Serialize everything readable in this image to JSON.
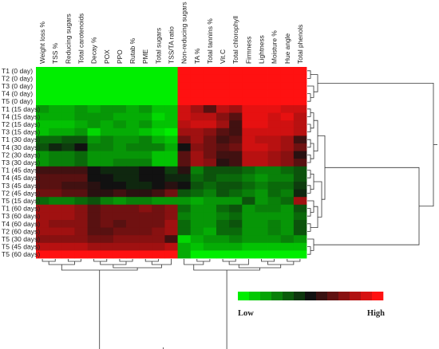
{
  "chart_data": {
    "type": "heatmap",
    "columns": [
      "Weight loss %",
      "TSS %",
      "Reducing sugars",
      "Total carotenoids",
      "Decay %",
      "POX",
      "PPO",
      "Rutab %",
      "PME",
      "Total sugars",
      "TSS/TA ratio",
      "Non-reducing sugars",
      "TA %",
      "Total tannins %",
      "Vit.C",
      "Total chlorophyll",
      "Firmness",
      "Lightness",
      "Moisture %",
      "Hue angle",
      "Total phenols"
    ],
    "rows": [
      "T1 (0 day)",
      "T2 (0 day)",
      "T3 (0 day)",
      "T4 (0 day)",
      "T5 (0 day)",
      "T1 (15 days)",
      "T4 (15 days)",
      "T2 (15 days)",
      "T3 (15 days)",
      "T1 (30 days)",
      "T4 (30 days)",
      "T2 (30 days)",
      "T3 (30 days)",
      "T1 (45 days)",
      "T4 (45 days)",
      "T3 (45 days)",
      "T2 (45 days)",
      "T5 (15 days)",
      "T1 (60 days)",
      "T3 (60 days)",
      "T4 (60 days)",
      "T2 (60 days)",
      "T5 (30 days)",
      "T5 (45 days)",
      "T5 (60 days)"
    ],
    "values": [
      [
        -1.0,
        -1.0,
        -1.0,
        -1.0,
        -1.0,
        -1.0,
        -1.0,
        -1.0,
        -1.0,
        -1.0,
        -1.0,
        1.0,
        1.0,
        1.0,
        1.0,
        1.0,
        1.0,
        1.0,
        1.0,
        1.0,
        1.0
      ],
      [
        -1.0,
        -1.0,
        -1.0,
        -1.0,
        -1.0,
        -1.0,
        -1.0,
        -1.0,
        -1.0,
        -1.0,
        -1.0,
        1.0,
        1.0,
        1.0,
        1.0,
        1.0,
        1.0,
        1.0,
        1.0,
        1.0,
        1.0
      ],
      [
        -1.0,
        -1.0,
        -1.0,
        -1.0,
        -1.0,
        -1.0,
        -1.0,
        -1.0,
        -1.0,
        -1.0,
        -1.0,
        1.0,
        1.0,
        1.0,
        1.0,
        1.0,
        1.0,
        1.0,
        1.0,
        1.0,
        1.0
      ],
      [
        -1.0,
        -1.0,
        -1.0,
        -1.0,
        -1.0,
        -1.0,
        -1.0,
        -1.0,
        -1.0,
        -1.0,
        -1.0,
        1.0,
        1.0,
        1.0,
        1.0,
        1.0,
        1.0,
        1.0,
        1.0,
        1.0,
        1.0
      ],
      [
        -1.0,
        -1.0,
        -1.0,
        -1.0,
        -1.0,
        -1.0,
        -1.0,
        -1.0,
        -1.0,
        -1.0,
        -1.0,
        1.0,
        1.0,
        1.0,
        1.0,
        1.0,
        1.0,
        1.0,
        1.0,
        1.0,
        1.0
      ],
      [
        -0.6,
        -0.7,
        -0.7,
        -0.6,
        -0.7,
        -0.6,
        -0.6,
        -0.7,
        -0.6,
        -0.8,
        -0.8,
        0.8,
        0.6,
        0.3,
        0.7,
        0.6,
        0.9,
        0.9,
        0.9,
        0.8,
        0.8
      ],
      [
        -0.7,
        -0.7,
        -0.7,
        -0.6,
        -0.6,
        -0.6,
        -0.7,
        -0.7,
        -0.7,
        -0.9,
        -0.8,
        0.8,
        0.7,
        0.7,
        0.5,
        0.3,
        0.9,
        0.9,
        0.8,
        0.9,
        0.7
      ],
      [
        -0.8,
        -0.8,
        -0.8,
        -0.7,
        -0.6,
        -0.7,
        -0.6,
        -0.7,
        -0.6,
        -0.8,
        -0.8,
        0.7,
        0.8,
        0.8,
        0.6,
        0.2,
        0.9,
        0.9,
        0.8,
        0.8,
        0.7
      ],
      [
        -0.8,
        -0.7,
        -0.7,
        -0.6,
        -0.9,
        -0.7,
        -0.7,
        -0.7,
        -0.8,
        -0.9,
        -1.0,
        0.6,
        0.6,
        0.5,
        0.3,
        0.2,
        0.8,
        0.8,
        0.8,
        0.8,
        0.7
      ],
      [
        -0.4,
        -0.4,
        -0.3,
        -0.3,
        -0.6,
        -0.5,
        -0.6,
        -0.6,
        -0.5,
        -0.7,
        -0.8,
        0.4,
        0.6,
        0.4,
        0.2,
        0.3,
        0.8,
        0.7,
        0.7,
        0.6,
        0.2
      ],
      [
        -0.3,
        -0.1,
        -0.2,
        0.0,
        -0.5,
        -0.5,
        -0.6,
        -0.5,
        -0.5,
        -0.5,
        -0.7,
        0.0,
        0.5,
        0.4,
        0.3,
        0.4,
        0.8,
        0.8,
        0.7,
        0.6,
        0.4
      ],
      [
        -0.6,
        -0.5,
        -0.5,
        -0.4,
        -0.6,
        -0.6,
        -0.6,
        -0.6,
        -0.6,
        -0.8,
        -0.8,
        0.3,
        0.6,
        0.4,
        0.2,
        0.2,
        0.7,
        0.7,
        0.6,
        0.5,
        0.1
      ],
      [
        -0.6,
        -0.5,
        -0.5,
        -0.4,
        -0.6,
        -0.6,
        -0.5,
        -0.5,
        -0.5,
        -0.8,
        -0.8,
        0.3,
        0.6,
        0.5,
        0.1,
        0.2,
        0.7,
        0.7,
        0.6,
        0.5,
        0.3
      ],
      [
        0.2,
        0.2,
        0.2,
        0.2,
        0.0,
        -0.1,
        -0.1,
        -0.1,
        0.0,
        0.0,
        -0.2,
        0.1,
        -0.5,
        -0.3,
        -0.3,
        -0.3,
        -0.4,
        -0.5,
        -0.5,
        -0.4,
        -0.3
      ],
      [
        0.3,
        0.3,
        0.3,
        0.3,
        0.0,
        0.0,
        -0.1,
        -0.1,
        0.0,
        0.0,
        -0.1,
        -0.1,
        -0.4,
        -0.3,
        -0.4,
        -0.4,
        -0.5,
        -0.6,
        -0.5,
        -0.5,
        -0.3
      ],
      [
        0.3,
        0.3,
        0.2,
        0.2,
        0.1,
        0.0,
        0.0,
        -0.1,
        -0.1,
        0.0,
        0.1,
        0.0,
        -0.3,
        -0.4,
        -0.3,
        -0.3,
        -0.4,
        -0.5,
        -0.4,
        -0.4,
        -0.2
      ],
      [
        0.4,
        0.4,
        0.3,
        0.3,
        0.1,
        0.1,
        0.2,
        0.1,
        0.1,
        0.2,
        0.4,
        -0.3,
        -0.4,
        -0.5,
        -0.3,
        -0.4,
        -0.5,
        -0.6,
        -0.4,
        -0.5,
        -0.1
      ],
      [
        -0.4,
        -0.5,
        -0.5,
        -0.4,
        -0.3,
        -0.5,
        -0.6,
        -0.5,
        -0.5,
        -0.6,
        -0.6,
        -0.6,
        -0.7,
        -0.6,
        -0.6,
        -0.6,
        -0.3,
        -0.6,
        -0.5,
        -0.4,
        0.6
      ],
      [
        0.6,
        0.6,
        0.6,
        0.5,
        0.3,
        0.4,
        0.4,
        0.4,
        0.5,
        0.4,
        0.5,
        -0.4,
        -0.6,
        -0.6,
        -0.4,
        -0.3,
        -0.6,
        -0.5,
        -0.5,
        -0.6,
        -0.3
      ],
      [
        0.6,
        0.6,
        0.6,
        0.5,
        0.3,
        0.4,
        0.4,
        0.4,
        0.4,
        0.4,
        0.5,
        -0.5,
        -0.6,
        -0.6,
        -0.5,
        -0.4,
        -0.6,
        -0.6,
        -0.6,
        -0.6,
        -0.4
      ],
      [
        0.6,
        0.5,
        0.5,
        0.5,
        0.3,
        0.4,
        0.3,
        0.4,
        0.4,
        0.4,
        0.6,
        -0.4,
        -0.6,
        -0.6,
        -0.4,
        -0.3,
        -0.6,
        -0.6,
        -0.5,
        -0.6,
        -0.3
      ],
      [
        0.6,
        0.6,
        0.6,
        0.5,
        0.3,
        0.3,
        0.4,
        0.4,
        0.4,
        0.5,
        0.6,
        -0.4,
        -0.6,
        -0.7,
        -0.4,
        -0.4,
        -0.6,
        -0.6,
        -0.5,
        -0.6,
        -0.3
      ],
      [
        0.5,
        0.5,
        0.5,
        0.5,
        0.4,
        0.4,
        0.5,
        0.5,
        0.5,
        0.5,
        0.2,
        -0.9,
        -0.7,
        -0.6,
        -0.6,
        -0.5,
        -0.6,
        -0.6,
        -0.6,
        -0.5,
        -0.6
      ],
      [
        0.7,
        0.7,
        0.7,
        0.7,
        0.6,
        0.6,
        0.6,
        0.6,
        0.6,
        0.6,
        0.7,
        -0.7,
        -0.8,
        -0.7,
        -0.7,
        -0.7,
        -0.8,
        -0.8,
        -0.8,
        -0.8,
        -0.8
      ],
      [
        1.0,
        1.0,
        1.0,
        1.0,
        1.0,
        1.0,
        1.0,
        1.0,
        1.0,
        1.0,
        1.0,
        -0.7,
        -1.0,
        -1.0,
        -1.0,
        -1.0,
        -1.0,
        -1.0,
        -1.0,
        -1.0,
        -1.0
      ]
    ],
    "value_range": [
      -1,
      1
    ],
    "color_scale": [
      "#00ee00",
      "#111111",
      "#ff1111"
    ],
    "legend": {
      "low_label": "Low",
      "high_label": "High",
      "steps": 13,
      "placement": "bottom-right"
    },
    "column_dendrogram": "bottom",
    "row_dendrogram": "right",
    "grid": false
  }
}
